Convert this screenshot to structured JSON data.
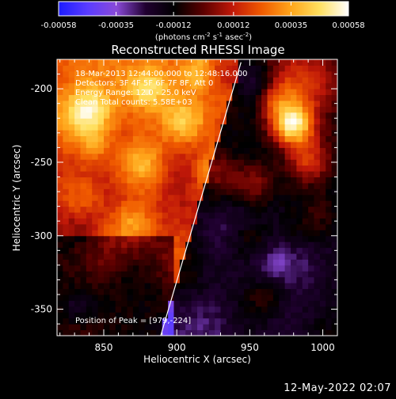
{
  "colorbar": {
    "ticks": [
      {
        "value": -0.00058,
        "label": "-0.00058"
      },
      {
        "value": -0.00035,
        "label": "-0.00035"
      },
      {
        "value": -0.00012,
        "label": "-0.00012"
      },
      {
        "value": 0.00012,
        "label": "0.00012"
      },
      {
        "value": 0.00035,
        "label": "0.00035"
      },
      {
        "value": 0.00058,
        "label": "0.00058"
      }
    ],
    "range": [
      -0.00058,
      0.00058
    ],
    "units": {
      "t1": "(photons cm",
      "s1": "-2",
      "t2": " s",
      "s2": "-1",
      "t3": " asec",
      "s3": "-2",
      "t4": ")"
    },
    "colors": [
      "#1c1cff",
      "#5a3cff",
      "#8a4ad8",
      "#200030",
      "#000000",
      "#5c0000",
      "#c01808",
      "#f05a00",
      "#ffa51a",
      "#ffe060",
      "#ffffff"
    ]
  },
  "chart_data": {
    "type": "heatmap",
    "title": "Reconstructed RHESSI Image",
    "xlabel": "Heliocentric X (arcsec)",
    "ylabel": "Heliocentric Y (arcsec)",
    "xlim": [
      818,
      1010
    ],
    "ylim": [
      -368,
      -180
    ],
    "xticks": [
      {
        "value": 850,
        "label": "850"
      },
      {
        "value": 900,
        "label": "900"
      },
      {
        "value": 950,
        "label": "950"
      },
      {
        "value": 1000,
        "label": "1000"
      }
    ],
    "yticks": [
      {
        "value": -200,
        "label": "-200"
      },
      {
        "value": -250,
        "label": "-250"
      },
      {
        "value": -300,
        "label": "-300"
      },
      {
        "value": -350,
        "label": "-350"
      }
    ],
    "info_lines": [
      "18-Mar-2013 12:44:00.000 to 12:48:16.000",
      "Detectors: 3F 4F 5F 6F 7F 8F, Att 0",
      "Energy Range: 12.0 - 25.0 keV",
      "Clean     Total counts: 5.58E+03"
    ],
    "peak_label": "Position of Peak = [979,-224]",
    "peak": [
      979,
      -224
    ],
    "limb_line": [
      [
        889,
        -368
      ],
      [
        944,
        -182
      ]
    ]
  },
  "timestamp": "12-May-2022 02:07"
}
